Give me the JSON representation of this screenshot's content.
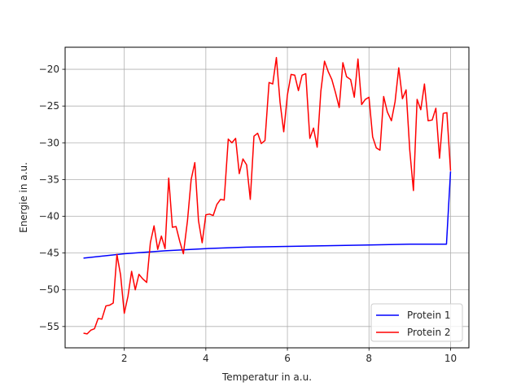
{
  "chart_data": {
    "type": "line",
    "xlabel": "Temperatur in a.u.",
    "ylabel": "Energie in a.u.",
    "xlim": [
      0.55,
      10.45
    ],
    "ylim": [
      -57.9,
      -17.0
    ],
    "xticks": [
      2,
      4,
      6,
      8,
      10
    ],
    "yticks": [
      -55,
      -50,
      -45,
      -40,
      -35,
      -30,
      -25,
      -20
    ],
    "grid": true,
    "legend_position": "lower-right",
    "series": [
      {
        "name": "Protein 1",
        "color": "#0000ff",
        "x": [
          1.0,
          2.0,
          3.0,
          4.0,
          5.0,
          6.0,
          7.0,
          8.0,
          9.0,
          9.9,
          10.0
        ],
        "y": [
          -45.7,
          -45.1,
          -44.7,
          -44.4,
          -44.2,
          -44.1,
          -44.0,
          -43.9,
          -43.8,
          -43.8,
          -33.9
        ]
      },
      {
        "name": "Protein 2",
        "color": "#ff0000",
        "x": [
          1.0,
          1.09,
          1.18,
          1.27,
          1.36,
          1.45,
          1.55,
          1.64,
          1.73,
          1.82,
          1.91,
          2.0,
          2.09,
          2.18,
          2.27,
          2.36,
          2.45,
          2.55,
          2.64,
          2.73,
          2.82,
          2.91,
          3.0,
          3.09,
          3.18,
          3.27,
          3.36,
          3.45,
          3.55,
          3.64,
          3.73,
          3.82,
          3.91,
          4.0,
          4.09,
          4.18,
          4.27,
          4.36,
          4.45,
          4.55,
          4.64,
          4.73,
          4.82,
          4.91,
          5.0,
          5.09,
          5.18,
          5.27,
          5.36,
          5.45,
          5.55,
          5.64,
          5.73,
          5.82,
          5.91,
          6.0,
          6.09,
          6.18,
          6.27,
          6.36,
          6.45,
          6.55,
          6.64,
          6.73,
          6.82,
          6.91,
          7.0,
          7.09,
          7.18,
          7.27,
          7.36,
          7.45,
          7.55,
          7.64,
          7.73,
          7.82,
          7.91,
          8.0,
          8.09,
          8.18,
          8.27,
          8.36,
          8.45,
          8.55,
          8.64,
          8.73,
          8.82,
          8.91,
          9.0,
          9.09,
          9.18,
          9.27,
          9.36,
          9.45,
          9.55,
          9.64,
          9.73,
          9.82,
          9.91,
          10.0
        ],
        "y": [
          -55.9,
          -56.0,
          -55.5,
          -55.3,
          -53.9,
          -54.0,
          -52.2,
          -52.1,
          -51.8,
          -45.2,
          -48.0,
          -53.2,
          -50.9,
          -47.5,
          -50.0,
          -47.9,
          -48.5,
          -49.0,
          -43.6,
          -41.3,
          -44.5,
          -42.7,
          -44.4,
          -34.8,
          -41.5,
          -41.4,
          -43.4,
          -45.1,
          -40.6,
          -35.0,
          -32.7,
          -40.6,
          -43.6,
          -39.8,
          -39.7,
          -39.9,
          -38.4,
          -37.7,
          -37.8,
          -29.5,
          -30.0,
          -29.4,
          -34.2,
          -32.2,
          -33.0,
          -37.7,
          -29.1,
          -28.7,
          -30.1,
          -29.7,
          -21.8,
          -22.0,
          -18.4,
          -24.5,
          -28.5,
          -23.5,
          -20.7,
          -20.8,
          -22.9,
          -20.8,
          -20.6,
          -29.4,
          -28.0,
          -30.6,
          -23.0,
          -18.9,
          -20.3,
          -21.4,
          -23.2,
          -25.2,
          -19.1,
          -21.0,
          -21.4,
          -23.8,
          -18.6,
          -24.8,
          -24.1,
          -23.8,
          -29.2,
          -30.7,
          -31.0,
          -23.7,
          -25.8,
          -27.0,
          -24.4,
          -19.8,
          -24.0,
          -22.8,
          -31.0,
          -36.5,
          -24.1,
          -25.5,
          -22.0,
          -27.0,
          -26.9,
          -25.3,
          -32.1,
          -26.0,
          -25.9,
          -33.8
        ]
      }
    ]
  }
}
